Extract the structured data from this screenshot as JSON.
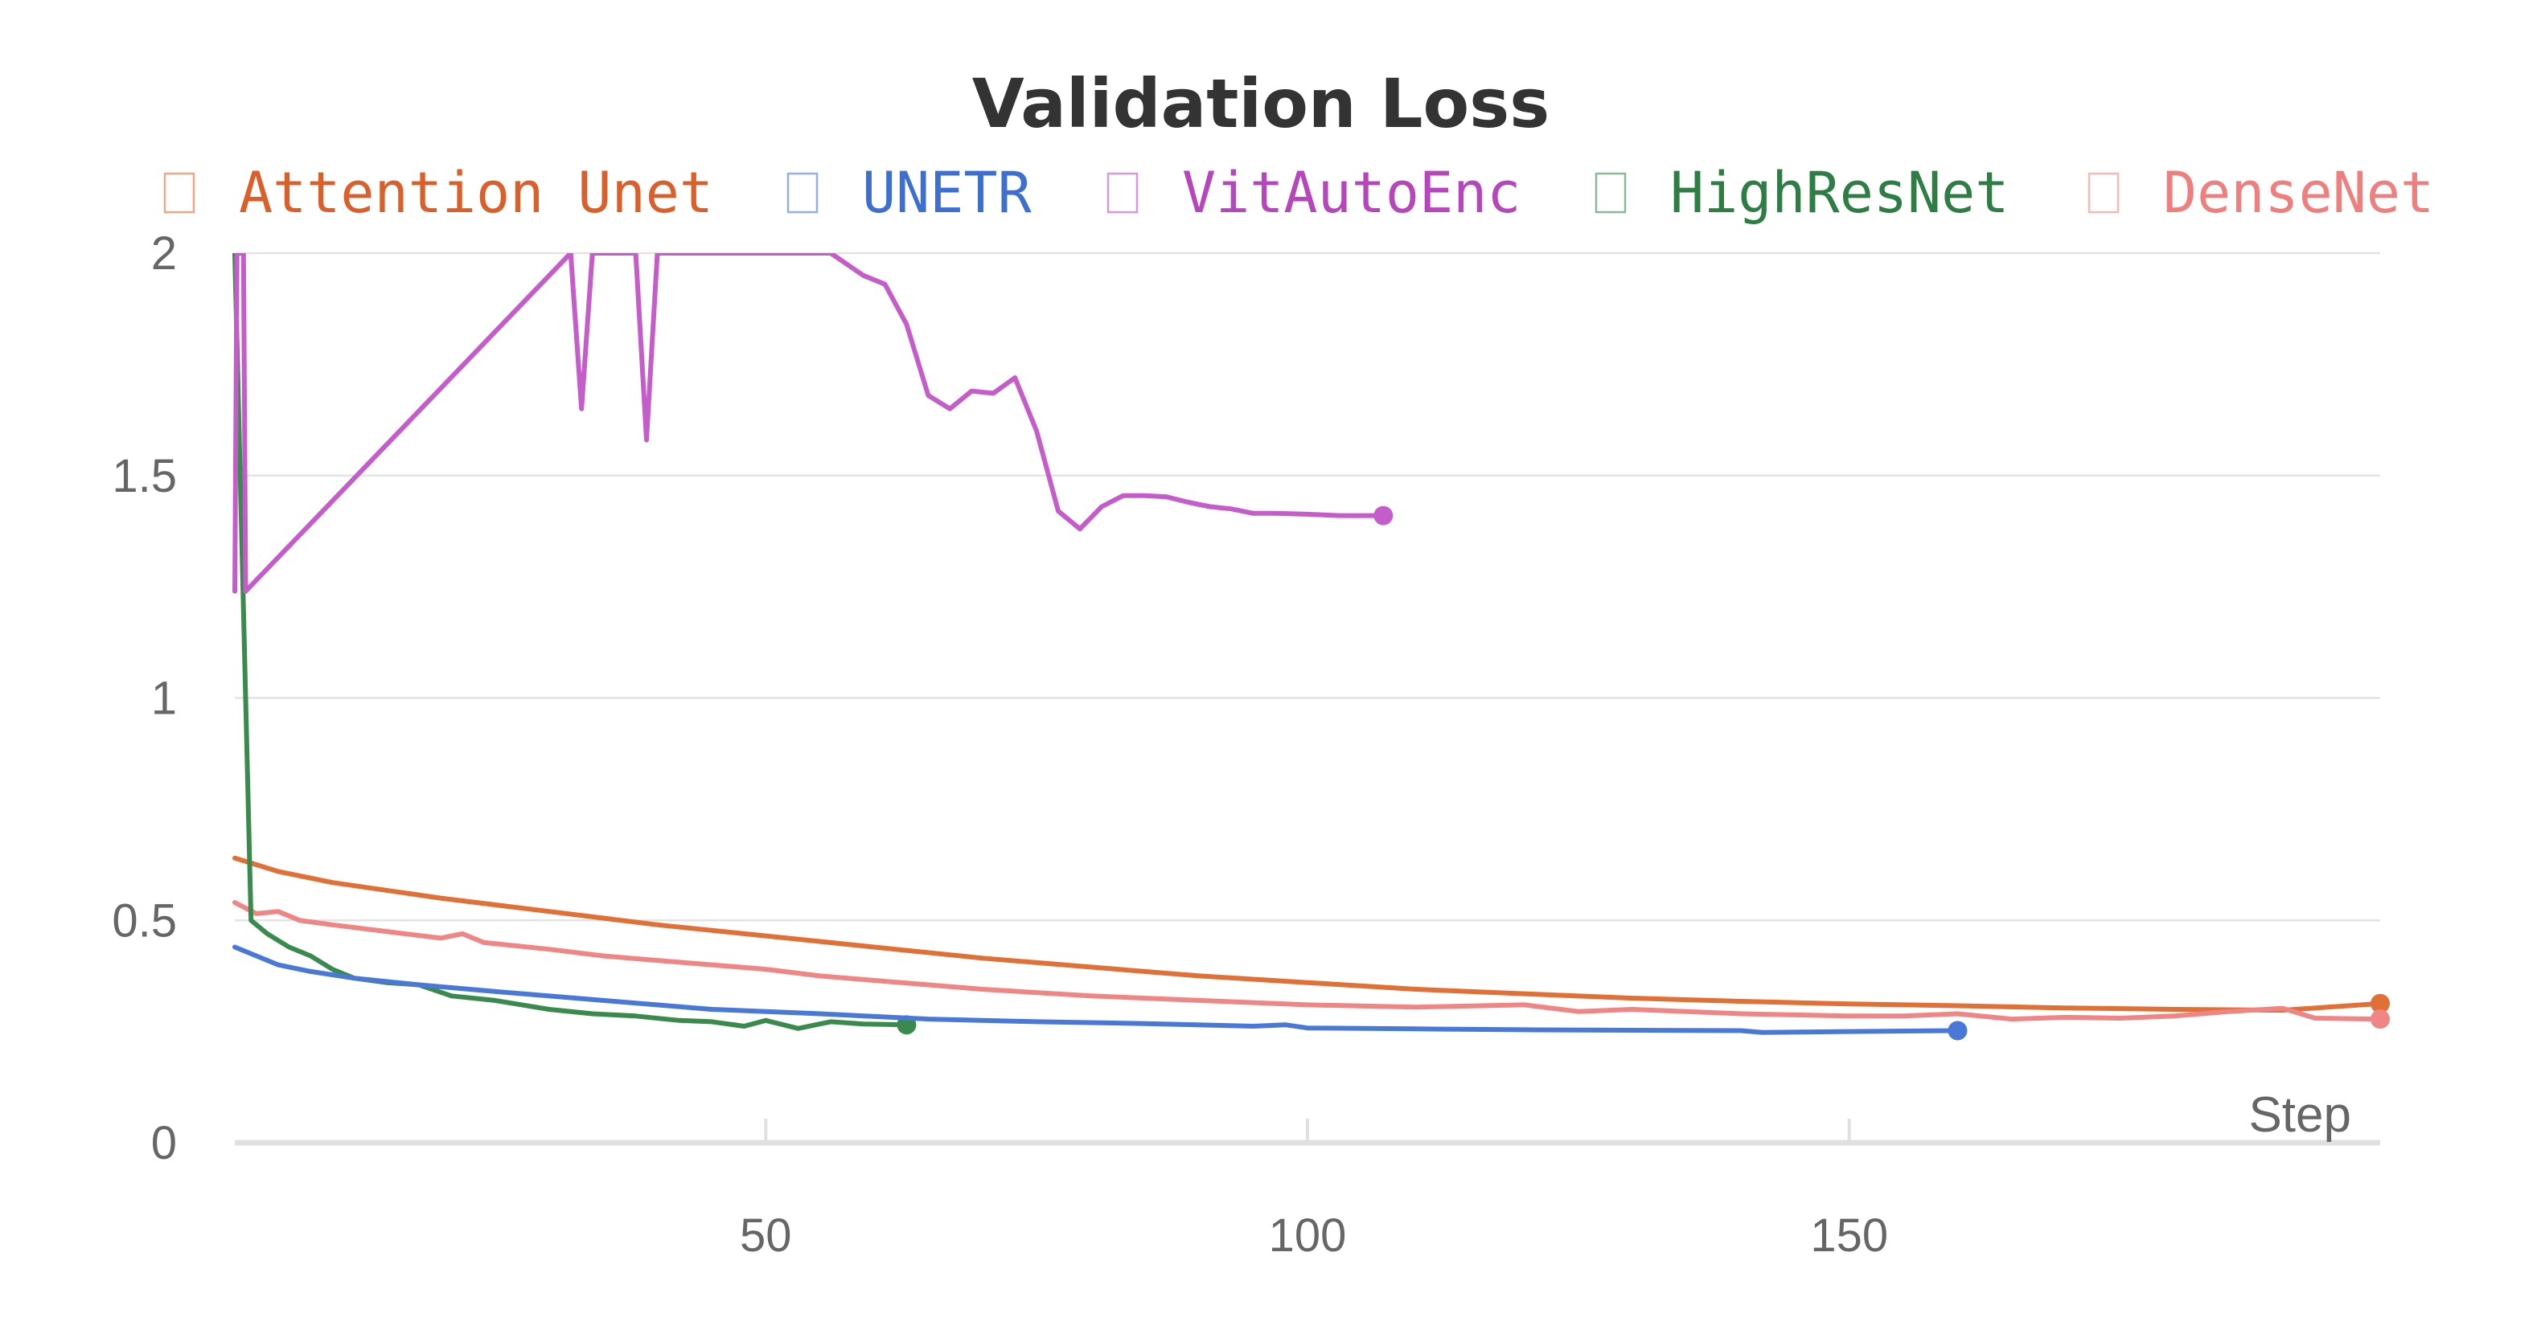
{
  "chart_data": {
    "type": "line",
    "title": "Validation Loss",
    "xlabel": "Step",
    "ylabel": "",
    "xlim": [
      1,
      199
    ],
    "ylim": [
      0,
      2
    ],
    "x_ticks": [
      50,
      100,
      150
    ],
    "y_ticks": [
      0,
      0.5,
      1,
      1.5,
      2
    ],
    "x_tick_labels": [
      "50",
      "100",
      "150"
    ],
    "y_tick_labels": [
      "0",
      "0.5",
      "1",
      "1.5",
      "2"
    ],
    "grid": true,
    "legend_position": "top",
    "series": [
      {
        "name": "Attention Unet",
        "color": "#e07036",
        "legend_color": "#d9602a",
        "points": [
          [
            1,
            0.64
          ],
          [
            5,
            0.61
          ],
          [
            10,
            0.585
          ],
          [
            20,
            0.55
          ],
          [
            30,
            0.52
          ],
          [
            40,
            0.49
          ],
          [
            50,
            0.465
          ],
          [
            60,
            0.44
          ],
          [
            70,
            0.415
          ],
          [
            80,
            0.395
          ],
          [
            90,
            0.375
          ],
          [
            100,
            0.36
          ],
          [
            110,
            0.345
          ],
          [
            120,
            0.335
          ],
          [
            130,
            0.325
          ],
          [
            140,
            0.318
          ],
          [
            150,
            0.312
          ],
          [
            160,
            0.308
          ],
          [
            170,
            0.303
          ],
          [
            180,
            0.3
          ],
          [
            190,
            0.298
          ],
          [
            199,
            0.313
          ]
        ]
      },
      {
        "name": "UNETR",
        "color": "#4a78d6",
        "legend_color": "#3d6fd0",
        "points": [
          [
            1,
            0.44
          ],
          [
            3,
            0.42
          ],
          [
            5,
            0.4
          ],
          [
            8,
            0.385
          ],
          [
            12,
            0.37
          ],
          [
            18,
            0.355
          ],
          [
            25,
            0.34
          ],
          [
            35,
            0.32
          ],
          [
            45,
            0.3
          ],
          [
            55,
            0.29
          ],
          [
            65,
            0.278
          ],
          [
            75,
            0.272
          ],
          [
            85,
            0.268
          ],
          [
            95,
            0.262
          ],
          [
            98,
            0.265
          ],
          [
            100,
            0.258
          ],
          [
            110,
            0.256
          ],
          [
            120,
            0.254
          ],
          [
            130,
            0.253
          ],
          [
            140,
            0.252
          ],
          [
            142,
            0.248
          ],
          [
            150,
            0.25
          ],
          [
            160,
            0.252
          ]
        ]
      },
      {
        "name": "VitAutoEnc",
        "color": "#c45dc9",
        "legend_color": "#b547bb",
        "points": [
          [
            1,
            1.24
          ],
          [
            1.2,
            2
          ],
          [
            1.8,
            2
          ],
          [
            2,
            1.24
          ],
          [
            32,
            2
          ],
          [
            33,
            1.65
          ],
          [
            34,
            2
          ],
          [
            38,
            2
          ],
          [
            39,
            1.58
          ],
          [
            40,
            2
          ],
          [
            56,
            2
          ],
          [
            59,
            1.95
          ],
          [
            61,
            1.93
          ],
          [
            63,
            1.84
          ],
          [
            65,
            1.68
          ],
          [
            67,
            1.65
          ],
          [
            69,
            1.69
          ],
          [
            71,
            1.685
          ],
          [
            73,
            1.72
          ],
          [
            75,
            1.6
          ],
          [
            77,
            1.42
          ],
          [
            79,
            1.38
          ],
          [
            81,
            1.43
          ],
          [
            83,
            1.455
          ],
          [
            85,
            1.455
          ],
          [
            87,
            1.452
          ],
          [
            89,
            1.44
          ],
          [
            91,
            1.43
          ],
          [
            93,
            1.425
          ],
          [
            95,
            1.415
          ],
          [
            97,
            1.415
          ],
          [
            100,
            1.413
          ],
          [
            103,
            1.41
          ],
          [
            107,
            1.41
          ]
        ]
      },
      {
        "name": "HighResNet",
        "color": "#3a8a4e",
        "legend_color": "#2e7d45",
        "points": [
          [
            1,
            2
          ],
          [
            2.5,
            0.5
          ],
          [
            4,
            0.47
          ],
          [
            6,
            0.44
          ],
          [
            8,
            0.42
          ],
          [
            10,
            0.39
          ],
          [
            12,
            0.37
          ],
          [
            15,
            0.36
          ],
          [
            18,
            0.355
          ],
          [
            21,
            0.33
          ],
          [
            25,
            0.32
          ],
          [
            30,
            0.3
          ],
          [
            34,
            0.29
          ],
          [
            38,
            0.285
          ],
          [
            42,
            0.275
          ],
          [
            45,
            0.272
          ],
          [
            48,
            0.262
          ],
          [
            50,
            0.275
          ],
          [
            53,
            0.257
          ],
          [
            56,
            0.272
          ],
          [
            59,
            0.267
          ],
          [
            63,
            0.265
          ]
        ]
      },
      {
        "name": "DenseNet",
        "color": "#ef8585",
        "legend_color": "#ee7f7f",
        "points": [
          [
            1,
            0.54
          ],
          [
            3,
            0.515
          ],
          [
            5,
            0.52
          ],
          [
            7,
            0.5
          ],
          [
            10,
            0.49
          ],
          [
            15,
            0.475
          ],
          [
            20,
            0.46
          ],
          [
            22,
            0.47
          ],
          [
            24,
            0.45
          ],
          [
            30,
            0.435
          ],
          [
            35,
            0.42
          ],
          [
            40,
            0.41
          ],
          [
            45,
            0.4
          ],
          [
            50,
            0.39
          ],
          [
            55,
            0.375
          ],
          [
            60,
            0.365
          ],
          [
            65,
            0.355
          ],
          [
            70,
            0.345
          ],
          [
            80,
            0.33
          ],
          [
            90,
            0.32
          ],
          [
            100,
            0.31
          ],
          [
            110,
            0.305
          ],
          [
            120,
            0.31
          ],
          [
            125,
            0.295
          ],
          [
            130,
            0.3
          ],
          [
            140,
            0.29
          ],
          [
            150,
            0.285
          ],
          [
            155,
            0.285
          ],
          [
            160,
            0.29
          ],
          [
            165,
            0.278
          ],
          [
            170,
            0.282
          ],
          [
            175,
            0.28
          ],
          [
            180,
            0.285
          ],
          [
            185,
            0.295
          ],
          [
            190,
            0.302
          ],
          [
            193,
            0.28
          ],
          [
            199,
            0.278
          ]
        ]
      }
    ]
  }
}
